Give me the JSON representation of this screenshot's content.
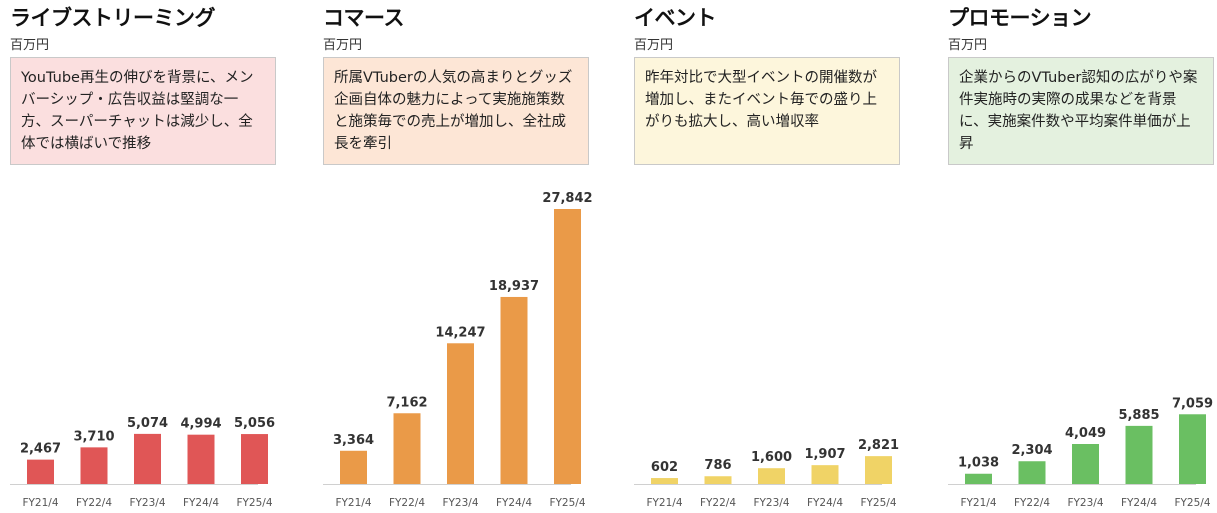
{
  "chart_data": [
    {
      "type": "bar",
      "title": "ライブストリーミング",
      "unit": "百万円",
      "note": "YouTube再生の伸びを背景に、メンバーシップ・広告収益は堅調な一方、スーパーチャットは減少し、全体では横ばいで推移",
      "note_bg": "#fbdfdf",
      "color": "#e05656",
      "categories": [
        "FY21/4",
        "FY22/4",
        "FY23/4",
        "FY24/4",
        "FY25/4"
      ],
      "values": [
        2467,
        3710,
        5074,
        4994,
        5056
      ],
      "value_labels": [
        "2,467",
        "3,710",
        "5,074",
        "4,994",
        "5,056"
      ]
    },
    {
      "type": "bar",
      "title": "コマース",
      "unit": "百万円",
      "note": "所属VTuberの人気の高まりとグッズ企画自体の魅力によって実施施策数と施策毎での売上が増加し、全社成長を牽引",
      "note_bg": "#fde6d6",
      "color": "#ea9a48",
      "categories": [
        "FY21/4",
        "FY22/4",
        "FY23/4",
        "FY24/4",
        "FY25/4"
      ],
      "values": [
        3364,
        7162,
        14247,
        18937,
        27842
      ],
      "value_labels": [
        "3,364",
        "7,162",
        "14,247",
        "18,937",
        "27,842"
      ]
    },
    {
      "type": "bar",
      "title": "イベント",
      "unit": "百万円",
      "note": "昨年対比で大型イベントの開催数が増加し、またイベント毎での盛り上がりも拡大し、高い増収率",
      "note_bg": "#fdf6dc",
      "color": "#f0d366",
      "categories": [
        "FY21/4",
        "FY22/4",
        "FY23/4",
        "FY24/4",
        "FY25/4"
      ],
      "values": [
        602,
        786,
        1600,
        1907,
        2821
      ],
      "value_labels": [
        "602",
        "786",
        "1,600",
        "1,907",
        "2,821"
      ]
    },
    {
      "type": "bar",
      "title": "プロモーション",
      "unit": "百万円",
      "note": "企業からのVTuber認知の広がりや案件実施時の実際の成果などを背景に、実施案件数や平均案件単価が上昇",
      "note_bg": "#e4f1df",
      "color": "#6abf62",
      "categories": [
        "FY21/4",
        "FY22/4",
        "FY23/4",
        "FY24/4",
        "FY25/4"
      ],
      "values": [
        1038,
        2304,
        4049,
        5885,
        7059
      ],
      "value_labels": [
        "1,038",
        "2,304",
        "4,049",
        "5,885",
        "7,059"
      ]
    }
  ]
}
